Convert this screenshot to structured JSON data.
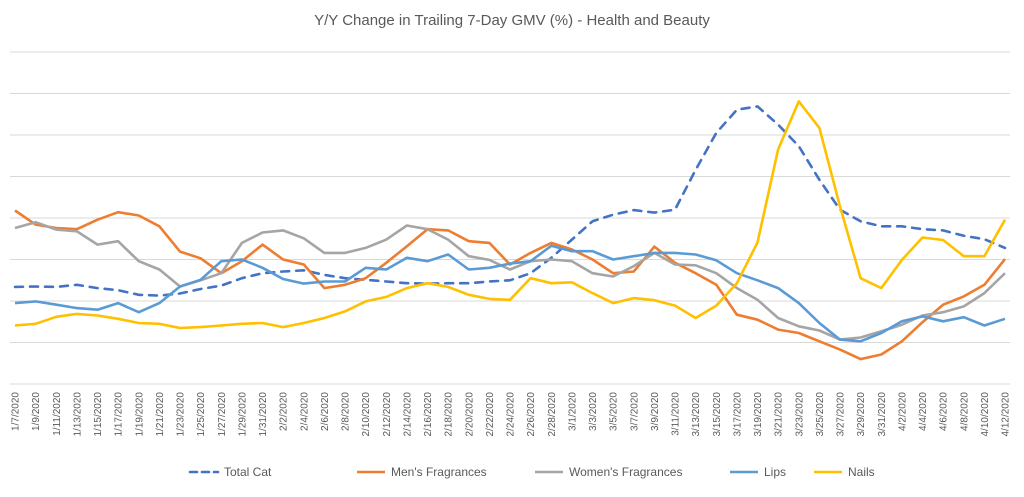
{
  "chart_data": {
    "type": "line",
    "title": "Y/Y Change in Trailing 7-Day GMV (%) - Health and Beauty",
    "xlabel": "",
    "ylabel": "",
    "y_axis_labels_shown": false,
    "ylim": [
      0,
      8
    ],
    "grid": true,
    "legend_position": "bottom",
    "categories": [
      "1/7/2020",
      "1/9/2020",
      "1/11/2020",
      "1/13/2020",
      "1/15/2020",
      "1/17/2020",
      "1/19/2020",
      "1/21/2020",
      "1/23/2020",
      "1/25/2020",
      "1/27/2020",
      "1/29/2020",
      "1/31/2020",
      "2/2/2020",
      "2/4/2020",
      "2/6/2020",
      "2/8/2020",
      "2/10/2020",
      "2/12/2020",
      "2/14/2020",
      "2/16/2020",
      "2/18/2020",
      "2/20/2020",
      "2/22/2020",
      "2/24/2020",
      "2/26/2020",
      "2/28/2020",
      "3/1/2020",
      "3/3/2020",
      "3/5/2020",
      "3/7/2020",
      "3/9/2020",
      "3/11/2020",
      "3/13/2020",
      "3/15/2020",
      "3/17/2020",
      "3/19/2020",
      "3/21/2020",
      "3/23/2020",
      "3/25/2020",
      "3/27/2020",
      "3/29/2020",
      "3/31/2020",
      "4/2/2020",
      "4/4/2020",
      "4/6/2020",
      "4/8/2020",
      "4/10/2020",
      "4/12/2020"
    ],
    "series": [
      {
        "name": "Total Cat",
        "color": "#4472C4",
        "dashed": true,
        "values": [
          2.34,
          2.35,
          2.34,
          2.39,
          2.31,
          2.26,
          2.15,
          2.13,
          2.18,
          2.29,
          2.37,
          2.55,
          2.67,
          2.71,
          2.74,
          2.63,
          2.55,
          2.51,
          2.47,
          2.43,
          2.42,
          2.43,
          2.43,
          2.47,
          2.5,
          2.67,
          3.04,
          3.48,
          3.92,
          4.08,
          4.19,
          4.13,
          4.2,
          5.16,
          6.05,
          6.61,
          6.69,
          6.25,
          5.73,
          4.92,
          4.2,
          3.92,
          3.8,
          3.8,
          3.73,
          3.7,
          3.57,
          3.49,
          3.28
        ]
      },
      {
        "name": "Men's Fragrances",
        "color": "#ED7D31",
        "values": [
          4.18,
          3.84,
          3.76,
          3.73,
          3.96,
          4.14,
          4.06,
          3.8,
          3.19,
          3.03,
          2.67,
          2.96,
          3.36,
          3.0,
          2.88,
          2.31,
          2.39,
          2.55,
          2.92,
          3.32,
          3.73,
          3.7,
          3.44,
          3.4,
          2.88,
          3.16,
          3.4,
          3.24,
          3.0,
          2.67,
          2.71,
          3.31,
          2.92,
          2.67,
          2.39,
          1.67,
          1.55,
          1.31,
          1.23,
          1.03,
          0.83,
          0.6,
          0.71,
          1.03,
          1.49,
          1.91,
          2.11,
          2.39,
          3.01
        ]
      },
      {
        "name": "Women's Fragrances",
        "color": "#A5A5A5",
        "values": [
          3.76,
          3.9,
          3.72,
          3.68,
          3.36,
          3.44,
          2.96,
          2.76,
          2.35,
          2.5,
          2.67,
          3.4,
          3.65,
          3.7,
          3.51,
          3.16,
          3.16,
          3.28,
          3.48,
          3.82,
          3.73,
          3.48,
          3.08,
          2.99,
          2.76,
          2.96,
          3.0,
          2.96,
          2.67,
          2.59,
          2.84,
          3.16,
          2.88,
          2.86,
          2.67,
          2.31,
          2.03,
          1.59,
          1.39,
          1.29,
          1.07,
          1.12,
          1.27,
          1.43,
          1.65,
          1.73,
          1.87,
          2.19,
          2.67
        ]
      },
      {
        "name": "Lips",
        "color": "#5B9BD5",
        "values": [
          1.95,
          1.99,
          1.91,
          1.83,
          1.79,
          1.95,
          1.73,
          1.95,
          2.35,
          2.51,
          2.96,
          3.0,
          2.8,
          2.53,
          2.42,
          2.47,
          2.47,
          2.8,
          2.76,
          3.04,
          2.96,
          3.12,
          2.76,
          2.8,
          2.9,
          2.96,
          3.33,
          3.2,
          3.2,
          3.0,
          3.08,
          3.16,
          3.16,
          3.12,
          2.98,
          2.67,
          2.5,
          2.31,
          1.95,
          1.47,
          1.07,
          1.03,
          1.23,
          1.51,
          1.63,
          1.51,
          1.61,
          1.41,
          1.57
        ]
      },
      {
        "name": "Nails",
        "color": "#FFC000",
        "values": [
          1.41,
          1.45,
          1.62,
          1.69,
          1.65,
          1.57,
          1.47,
          1.45,
          1.35,
          1.37,
          1.41,
          1.45,
          1.47,
          1.37,
          1.47,
          1.59,
          1.75,
          1.99,
          2.1,
          2.31,
          2.43,
          2.34,
          2.15,
          2.05,
          2.03,
          2.55,
          2.43,
          2.45,
          2.19,
          1.95,
          2.07,
          2.02,
          1.89,
          1.59,
          1.89,
          2.43,
          3.41,
          5.65,
          6.81,
          6.17,
          4.28,
          2.55,
          2.31,
          2.99,
          3.53,
          3.47,
          3.08,
          3.08,
          3.96
        ]
      }
    ]
  }
}
